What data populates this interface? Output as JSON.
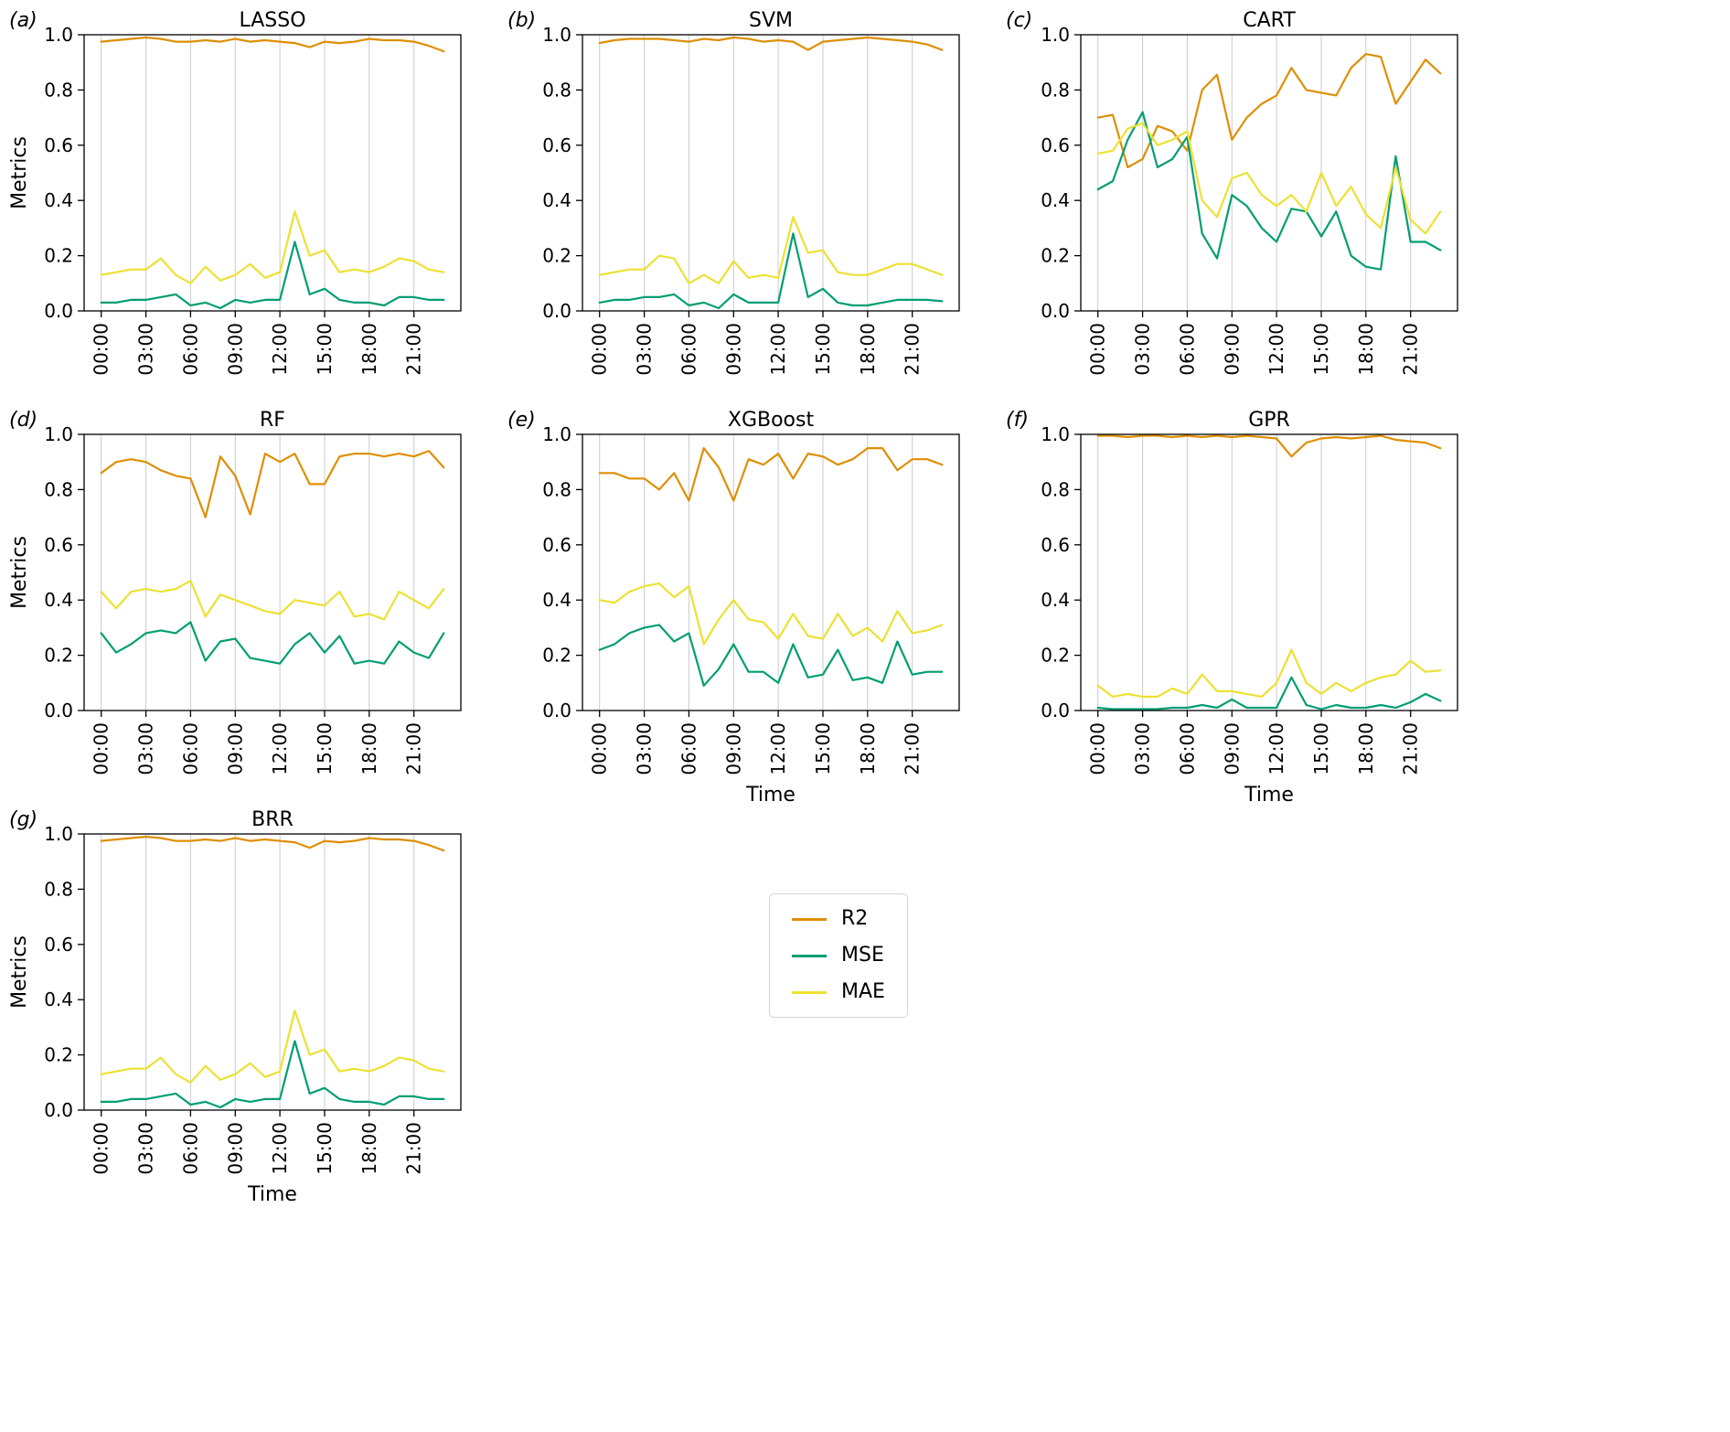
{
  "figure": {
    "ylabel": "Metrics",
    "xlabel": "Time",
    "colors": {
      "R2": "#DE8F05",
      "MSE": "#029E73",
      "MAE": "#ECE133"
    },
    "legend": {
      "items": [
        {
          "label": "R2"
        },
        {
          "label": "MSE"
        },
        {
          "label": "MAE"
        }
      ]
    }
  },
  "axes_defaults": {
    "ylim": [
      0.0,
      1.0
    ],
    "yticks": [
      0.0,
      0.2,
      0.4,
      0.6,
      0.8,
      1.0
    ],
    "ytick_labels": [
      "0.0",
      "0.2",
      "0.4",
      "0.6",
      "0.8",
      "1.0"
    ],
    "xtick_positions": [
      0,
      3,
      6,
      9,
      12,
      15,
      18,
      21
    ],
    "xtick_labels": [
      "00:00",
      "03:00",
      "06:00",
      "09:00",
      "12:00",
      "15:00",
      "18:00",
      "21:00"
    ],
    "x_categories": [
      "00:00",
      "01:00",
      "02:00",
      "03:00",
      "04:00",
      "05:00",
      "06:00",
      "07:00",
      "08:00",
      "09:00",
      "10:00",
      "11:00",
      "12:00",
      "13:00",
      "14:00",
      "15:00",
      "16:00",
      "17:00",
      "18:00",
      "19:00",
      "20:00",
      "21:00",
      "22:00",
      "23:00"
    ],
    "grid": "vertical-only"
  },
  "chart_data": [
    {
      "type": "line",
      "panel_label": "(a)",
      "title": "LASSO",
      "show_ylabel": true,
      "show_xlabel": false,
      "series": [
        {
          "name": "R2",
          "values": [
            0.975,
            0.98,
            0.985,
            0.99,
            0.985,
            0.975,
            0.975,
            0.98,
            0.975,
            0.985,
            0.975,
            0.98,
            0.975,
            0.97,
            0.955,
            0.975,
            0.97,
            0.975,
            0.985,
            0.98,
            0.98,
            0.975,
            0.96,
            0.94
          ]
        },
        {
          "name": "MSE",
          "values": [
            0.03,
            0.03,
            0.04,
            0.04,
            0.05,
            0.06,
            0.02,
            0.03,
            0.01,
            0.04,
            0.03,
            0.04,
            0.04,
            0.25,
            0.06,
            0.08,
            0.04,
            0.03,
            0.03,
            0.02,
            0.05,
            0.05,
            0.04,
            0.04
          ]
        },
        {
          "name": "MAE",
          "values": [
            0.13,
            0.14,
            0.15,
            0.15,
            0.19,
            0.13,
            0.1,
            0.16,
            0.11,
            0.13,
            0.17,
            0.12,
            0.14,
            0.36,
            0.2,
            0.22,
            0.14,
            0.15,
            0.14,
            0.16,
            0.19,
            0.18,
            0.15,
            0.14
          ]
        }
      ]
    },
    {
      "type": "line",
      "panel_label": "(b)",
      "title": "SVM",
      "show_ylabel": false,
      "show_xlabel": false,
      "series": [
        {
          "name": "R2",
          "values": [
            0.97,
            0.98,
            0.985,
            0.985,
            0.985,
            0.98,
            0.975,
            0.985,
            0.98,
            0.99,
            0.985,
            0.975,
            0.98,
            0.975,
            0.945,
            0.975,
            0.98,
            0.985,
            0.99,
            0.985,
            0.98,
            0.975,
            0.965,
            0.945
          ]
        },
        {
          "name": "MSE",
          "values": [
            0.03,
            0.04,
            0.04,
            0.05,
            0.05,
            0.06,
            0.02,
            0.03,
            0.01,
            0.06,
            0.03,
            0.03,
            0.03,
            0.28,
            0.05,
            0.08,
            0.03,
            0.02,
            0.02,
            0.03,
            0.04,
            0.04,
            0.04,
            0.035
          ]
        },
        {
          "name": "MAE",
          "values": [
            0.13,
            0.14,
            0.15,
            0.15,
            0.2,
            0.19,
            0.1,
            0.13,
            0.1,
            0.18,
            0.12,
            0.13,
            0.12,
            0.34,
            0.21,
            0.22,
            0.14,
            0.13,
            0.13,
            0.15,
            0.17,
            0.17,
            0.15,
            0.13
          ]
        }
      ]
    },
    {
      "type": "line",
      "panel_label": "(c)",
      "title": "CART",
      "show_ylabel": false,
      "show_xlabel": false,
      "series": [
        {
          "name": "R2",
          "values": [
            0.7,
            0.71,
            0.52,
            0.55,
            0.67,
            0.65,
            0.58,
            0.8,
            0.855,
            0.62,
            0.7,
            0.75,
            0.78,
            0.88,
            0.8,
            0.79,
            0.78,
            0.88,
            0.93,
            0.92,
            0.75,
            0.83,
            0.91,
            0.86
          ]
        },
        {
          "name": "MSE",
          "values": [
            0.44,
            0.47,
            0.62,
            0.72,
            0.52,
            0.55,
            0.63,
            0.28,
            0.19,
            0.42,
            0.38,
            0.3,
            0.25,
            0.37,
            0.36,
            0.27,
            0.36,
            0.2,
            0.16,
            0.15,
            0.56,
            0.25,
            0.25,
            0.22
          ]
        },
        {
          "name": "MAE",
          "values": [
            0.57,
            0.58,
            0.66,
            0.68,
            0.6,
            0.62,
            0.65,
            0.4,
            0.34,
            0.48,
            0.5,
            0.42,
            0.38,
            0.42,
            0.36,
            0.5,
            0.38,
            0.45,
            0.35,
            0.3,
            0.52,
            0.33,
            0.28,
            0.36
          ]
        }
      ]
    },
    {
      "type": "line",
      "panel_label": "(d)",
      "title": "RF",
      "show_ylabel": true,
      "show_xlabel": false,
      "series": [
        {
          "name": "R2",
          "values": [
            0.86,
            0.9,
            0.91,
            0.9,
            0.87,
            0.85,
            0.84,
            0.7,
            0.92,
            0.85,
            0.71,
            0.93,
            0.9,
            0.93,
            0.82,
            0.82,
            0.92,
            0.93,
            0.93,
            0.92,
            0.93,
            0.92,
            0.94,
            0.88
          ]
        },
        {
          "name": "MSE",
          "values": [
            0.28,
            0.21,
            0.24,
            0.28,
            0.29,
            0.28,
            0.32,
            0.18,
            0.25,
            0.26,
            0.19,
            0.18,
            0.17,
            0.24,
            0.28,
            0.21,
            0.27,
            0.17,
            0.18,
            0.17,
            0.25,
            0.21,
            0.19,
            0.28
          ]
        },
        {
          "name": "MAE",
          "values": [
            0.43,
            0.37,
            0.43,
            0.44,
            0.43,
            0.44,
            0.47,
            0.34,
            0.42,
            0.4,
            0.38,
            0.36,
            0.35,
            0.4,
            0.39,
            0.38,
            0.43,
            0.34,
            0.35,
            0.33,
            0.43,
            0.4,
            0.37,
            0.44
          ]
        }
      ]
    },
    {
      "type": "line",
      "panel_label": "(e)",
      "title": "XGBoost",
      "show_ylabel": false,
      "show_xlabel": true,
      "series": [
        {
          "name": "R2",
          "values": [
            0.86,
            0.86,
            0.84,
            0.84,
            0.8,
            0.86,
            0.76,
            0.95,
            0.88,
            0.76,
            0.91,
            0.89,
            0.93,
            0.84,
            0.93,
            0.92,
            0.89,
            0.91,
            0.95,
            0.95,
            0.87,
            0.91,
            0.91,
            0.89
          ]
        },
        {
          "name": "MSE",
          "values": [
            0.22,
            0.24,
            0.28,
            0.3,
            0.31,
            0.25,
            0.28,
            0.09,
            0.15,
            0.24,
            0.14,
            0.14,
            0.1,
            0.24,
            0.12,
            0.13,
            0.22,
            0.11,
            0.12,
            0.1,
            0.25,
            0.13,
            0.14,
            0.14
          ]
        },
        {
          "name": "MAE",
          "values": [
            0.4,
            0.39,
            0.43,
            0.45,
            0.46,
            0.41,
            0.45,
            0.24,
            0.33,
            0.4,
            0.33,
            0.32,
            0.26,
            0.35,
            0.27,
            0.26,
            0.35,
            0.27,
            0.3,
            0.25,
            0.36,
            0.28,
            0.29,
            0.31
          ]
        }
      ]
    },
    {
      "type": "line",
      "panel_label": "(f)",
      "title": "GPR",
      "show_ylabel": false,
      "show_xlabel": true,
      "series": [
        {
          "name": "R2",
          "values": [
            0.995,
            0.995,
            0.99,
            0.995,
            0.995,
            0.99,
            0.995,
            0.99,
            0.995,
            0.99,
            0.995,
            0.99,
            0.985,
            0.92,
            0.97,
            0.985,
            0.99,
            0.985,
            0.99,
            0.995,
            0.98,
            0.975,
            0.97,
            0.95
          ]
        },
        {
          "name": "MSE",
          "values": [
            0.01,
            0.005,
            0.005,
            0.005,
            0.005,
            0.01,
            0.01,
            0.02,
            0.01,
            0.04,
            0.01,
            0.01,
            0.01,
            0.12,
            0.02,
            0.005,
            0.02,
            0.01,
            0.01,
            0.02,
            0.01,
            0.03,
            0.06,
            0.035
          ]
        },
        {
          "name": "MAE",
          "values": [
            0.09,
            0.05,
            0.06,
            0.05,
            0.05,
            0.08,
            0.06,
            0.13,
            0.07,
            0.07,
            0.06,
            0.05,
            0.1,
            0.22,
            0.1,
            0.06,
            0.1,
            0.07,
            0.1,
            0.12,
            0.13,
            0.18,
            0.14,
            0.145
          ]
        }
      ]
    },
    {
      "type": "line",
      "panel_label": "(g)",
      "title": "BRR",
      "show_ylabel": true,
      "show_xlabel": true,
      "series": [
        {
          "name": "R2",
          "values": [
            0.975,
            0.98,
            0.985,
            0.99,
            0.985,
            0.975,
            0.975,
            0.98,
            0.975,
            0.985,
            0.975,
            0.98,
            0.975,
            0.97,
            0.95,
            0.975,
            0.97,
            0.975,
            0.985,
            0.98,
            0.98,
            0.975,
            0.96,
            0.94
          ]
        },
        {
          "name": "MSE",
          "values": [
            0.03,
            0.03,
            0.04,
            0.04,
            0.05,
            0.06,
            0.02,
            0.03,
            0.01,
            0.04,
            0.03,
            0.04,
            0.04,
            0.25,
            0.06,
            0.08,
            0.04,
            0.03,
            0.03,
            0.02,
            0.05,
            0.05,
            0.04,
            0.04
          ]
        },
        {
          "name": "MAE",
          "values": [
            0.13,
            0.14,
            0.15,
            0.15,
            0.19,
            0.13,
            0.1,
            0.16,
            0.11,
            0.13,
            0.17,
            0.12,
            0.14,
            0.36,
            0.2,
            0.22,
            0.14,
            0.15,
            0.14,
            0.16,
            0.19,
            0.18,
            0.15,
            0.14
          ]
        }
      ]
    }
  ]
}
